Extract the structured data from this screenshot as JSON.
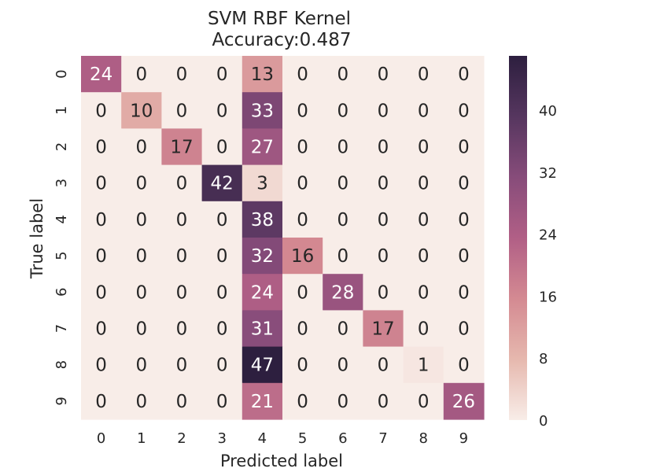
{
  "chart_data": {
    "type": "heatmap",
    "title": "SVM RBF Kernel",
    "subtitle": "Accuracy:0.487",
    "xlabel": "Predicted label",
    "ylabel": "True label",
    "x_categories": [
      "0",
      "1",
      "2",
      "3",
      "4",
      "5",
      "6",
      "7",
      "8",
      "9"
    ],
    "y_categories": [
      "0",
      "1",
      "2",
      "3",
      "4",
      "5",
      "6",
      "7",
      "8",
      "9"
    ],
    "values": [
      [
        24,
        0,
        0,
        0,
        13,
        0,
        0,
        0,
        0,
        0
      ],
      [
        0,
        10,
        0,
        0,
        33,
        0,
        0,
        0,
        0,
        0
      ],
      [
        0,
        0,
        17,
        0,
        27,
        0,
        0,
        0,
        0,
        0
      ],
      [
        0,
        0,
        0,
        42,
        3,
        0,
        0,
        0,
        0,
        0
      ],
      [
        0,
        0,
        0,
        0,
        38,
        0,
        0,
        0,
        0,
        0
      ],
      [
        0,
        0,
        0,
        0,
        32,
        16,
        0,
        0,
        0,
        0
      ],
      [
        0,
        0,
        0,
        0,
        24,
        0,
        28,
        0,
        0,
        0
      ],
      [
        0,
        0,
        0,
        0,
        31,
        0,
        0,
        17,
        0,
        0
      ],
      [
        0,
        0,
        0,
        0,
        47,
        0,
        0,
        0,
        1,
        0
      ],
      [
        0,
        0,
        0,
        0,
        21,
        0,
        0,
        0,
        0,
        26
      ]
    ],
    "colorbar": {
      "min": 0,
      "max": 47,
      "ticks": [
        0,
        8,
        16,
        24,
        32,
        40
      ]
    },
    "colormap": [
      "#f8ede8",
      "#e6b8ae",
      "#d48a92",
      "#b15f86",
      "#874c7a",
      "#56365f",
      "#2d1f3f"
    ]
  }
}
